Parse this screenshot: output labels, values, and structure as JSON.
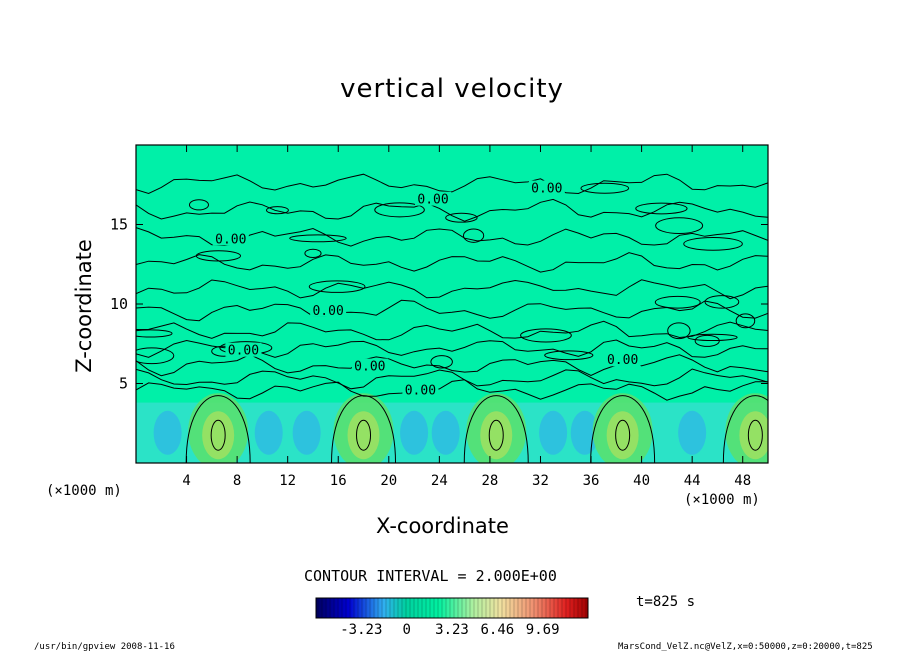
{
  "chart_data": {
    "type": "heatmap",
    "title": "vertical velocity",
    "xlabel": "X-coordinate",
    "ylabel": "Z-coordinate",
    "x_unit": "(×1000 m)",
    "xlim": [
      0,
      50
    ],
    "ylim": [
      0,
      20
    ],
    "x_ticks": [
      4,
      8,
      12,
      16,
      20,
      24,
      28,
      32,
      36,
      40,
      44,
      48
    ],
    "y_ticks": [
      5,
      10,
      15
    ],
    "contour_interval_label": "CONTOUR INTERVAL = 2.000E+00",
    "contour_labels": [
      "0.00",
      "0.00",
      "0.00",
      "0.00",
      "0.00",
      "0.00",
      "0.00",
      "0.00"
    ],
    "updraft_centers_x": [
      6.5,
      18,
      28.5,
      38.5,
      49
    ],
    "colorbar": {
      "ticks": [
        "-3.23",
        "0",
        "3.23",
        "6.46",
        "9.69"
      ],
      "range": [
        -6.46,
        12.92
      ]
    },
    "time_label": "t=825 s",
    "grid": false,
    "colors": {
      "background_field": "#00f0a8",
      "low": "#0000a0",
      "high": "#ff0000"
    }
  },
  "footer": {
    "left": "/usr/bin/gpview  2008-11-16",
    "right": "MarsCond_VelZ.nc@VelZ,x=0:50000,z=0:20000,t=825"
  }
}
